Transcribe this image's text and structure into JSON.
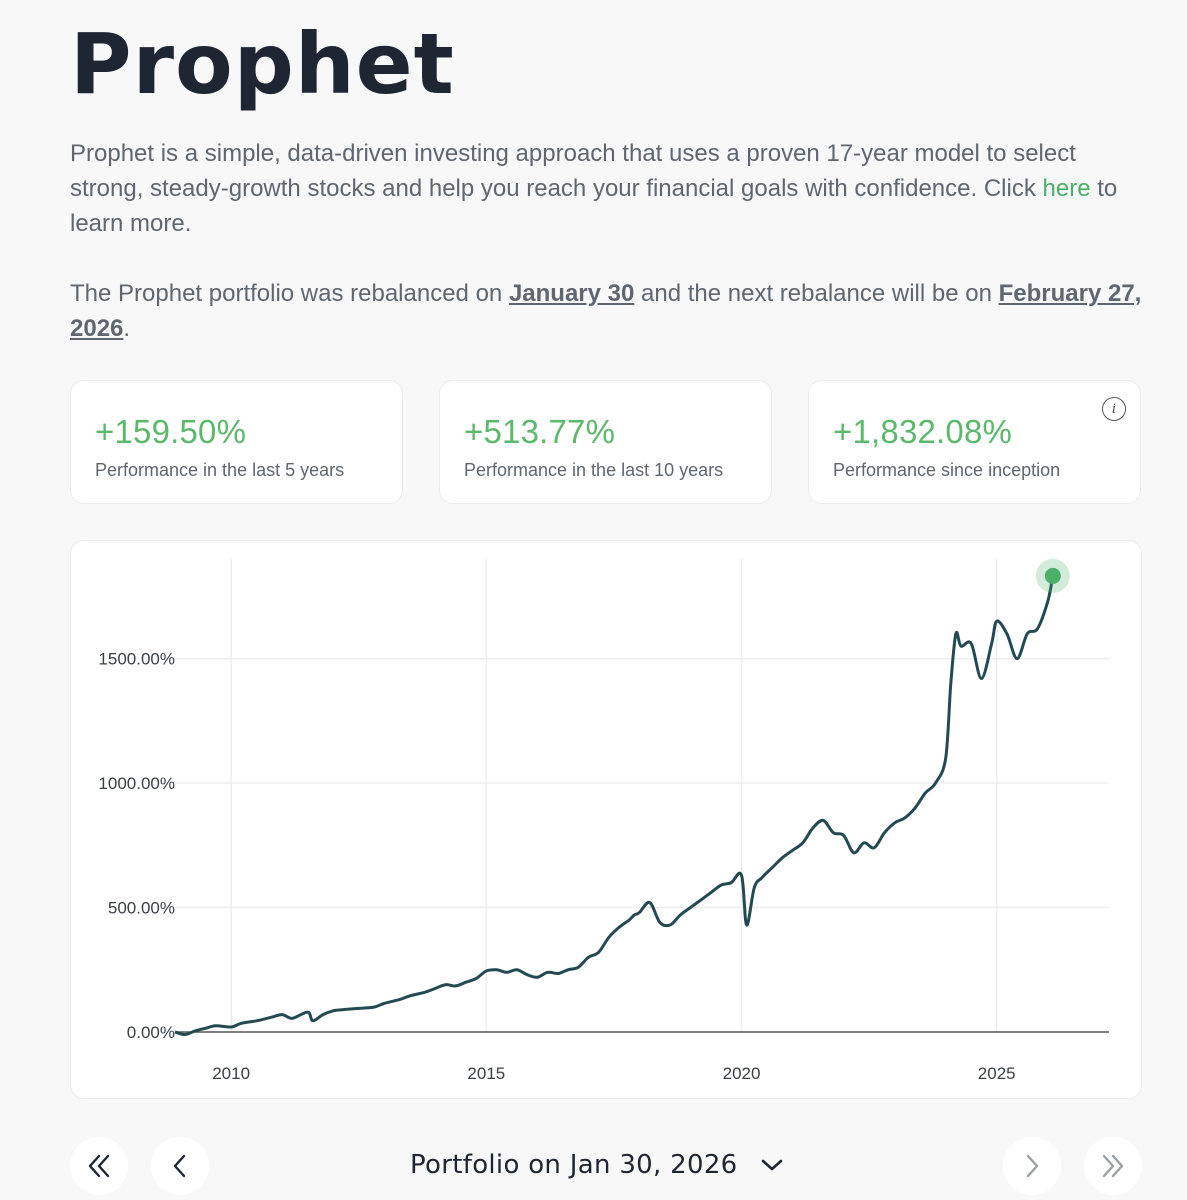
{
  "page": {
    "title": "Prophet",
    "intro_before": "Prophet is a simple, data-driven investing approach that uses a proven 17-year model to select strong, steady-growth stocks and help you reach your financial goals with confidence. Click ",
    "intro_link": "here",
    "intro_after": " to learn more.",
    "rebalance_before": "The Prophet portfolio was rebalanced on ",
    "rebalance_date": "January 30",
    "rebalance_middle": " and the next rebalance will be on ",
    "next_rebalance_date": "February 27, 2026",
    "rebalance_after": "."
  },
  "stats": [
    {
      "value": "+159.50%",
      "label": "Performance in the last 5 years"
    },
    {
      "value": "+513.77%",
      "label": "Performance in the last 10 years"
    },
    {
      "value": "+1,832.08%",
      "label": "Performance since inception"
    }
  ],
  "colors": {
    "accent": "#5cb86b",
    "line": "#234a52",
    "marker": "#4caf6a"
  },
  "footer": {
    "portfolio_label": "Portfolio on Jan 30, 2026",
    "icons": [
      "double-chevron-left-icon",
      "chevron-left-icon",
      "chevron-down-icon",
      "chevron-right-icon",
      "double-chevron-right-icon"
    ]
  },
  "chart_data": {
    "type": "line",
    "title": "",
    "xlabel": "",
    "ylabel": "",
    "xlim": [
      2008.9,
      2027.2
    ],
    "ylim": [
      0,
      1900
    ],
    "x_ticks": [
      2010,
      2015,
      2020,
      2025
    ],
    "x_tick_labels": [
      "2010",
      "2015",
      "2020",
      "2025"
    ],
    "y_ticks": [
      0,
      500,
      1000,
      1500
    ],
    "y_tick_labels": [
      "0.00%",
      "500.00%",
      "1000.00%",
      "1500.00%"
    ],
    "grid": true,
    "series": [
      {
        "name": "",
        "x": [
          2008.9,
          2009.1,
          2009.3,
          2009.5,
          2009.7,
          2010.0,
          2010.2,
          2010.5,
          2010.8,
          2011.0,
          2011.2,
          2011.5,
          2011.6,
          2011.8,
          2012.0,
          2012.2,
          2012.5,
          2012.8,
          2013.0,
          2013.3,
          2013.5,
          2013.8,
          2014.0,
          2014.2,
          2014.4,
          2014.6,
          2014.8,
          2015.0,
          2015.2,
          2015.4,
          2015.6,
          2015.8,
          2016.0,
          2016.2,
          2016.4,
          2016.6,
          2016.8,
          2017.0,
          2017.2,
          2017.4,
          2017.6,
          2017.8,
          2017.9,
          2018.0,
          2018.2,
          2018.4,
          2018.6,
          2018.8,
          2019.0,
          2019.2,
          2019.4,
          2019.6,
          2019.8,
          2020.0,
          2020.1,
          2020.25,
          2020.4,
          2020.6,
          2020.8,
          2021.0,
          2021.2,
          2021.4,
          2021.6,
          2021.8,
          2022.0,
          2022.2,
          2022.4,
          2022.6,
          2022.8,
          2023.0,
          2023.2,
          2023.4,
          2023.6,
          2023.8,
          2024.0,
          2024.1,
          2024.2,
          2024.3,
          2024.5,
          2024.7,
          2024.9,
          2025.0,
          2025.2,
          2025.4,
          2025.6,
          2025.8,
          2026.0,
          2026.1
        ],
        "values": [
          0,
          -10,
          5,
          15,
          25,
          20,
          35,
          45,
          60,
          70,
          55,
          80,
          45,
          70,
          85,
          90,
          95,
          100,
          115,
          130,
          145,
          160,
          175,
          190,
          185,
          200,
          215,
          245,
          250,
          240,
          250,
          230,
          220,
          240,
          235,
          250,
          260,
          300,
          320,
          380,
          420,
          450,
          470,
          480,
          520,
          440,
          430,
          470,
          500,
          530,
          560,
          590,
          600,
          630,
          430,
          580,
          620,
          660,
          700,
          730,
          760,
          820,
          850,
          800,
          790,
          720,
          760,
          740,
          800,
          840,
          860,
          900,
          960,
          1000,
          1100,
          1400,
          1600,
          1550,
          1560,
          1420,
          1560,
          1650,
          1600,
          1500,
          1600,
          1620,
          1730,
          1832
        ]
      }
    ]
  }
}
